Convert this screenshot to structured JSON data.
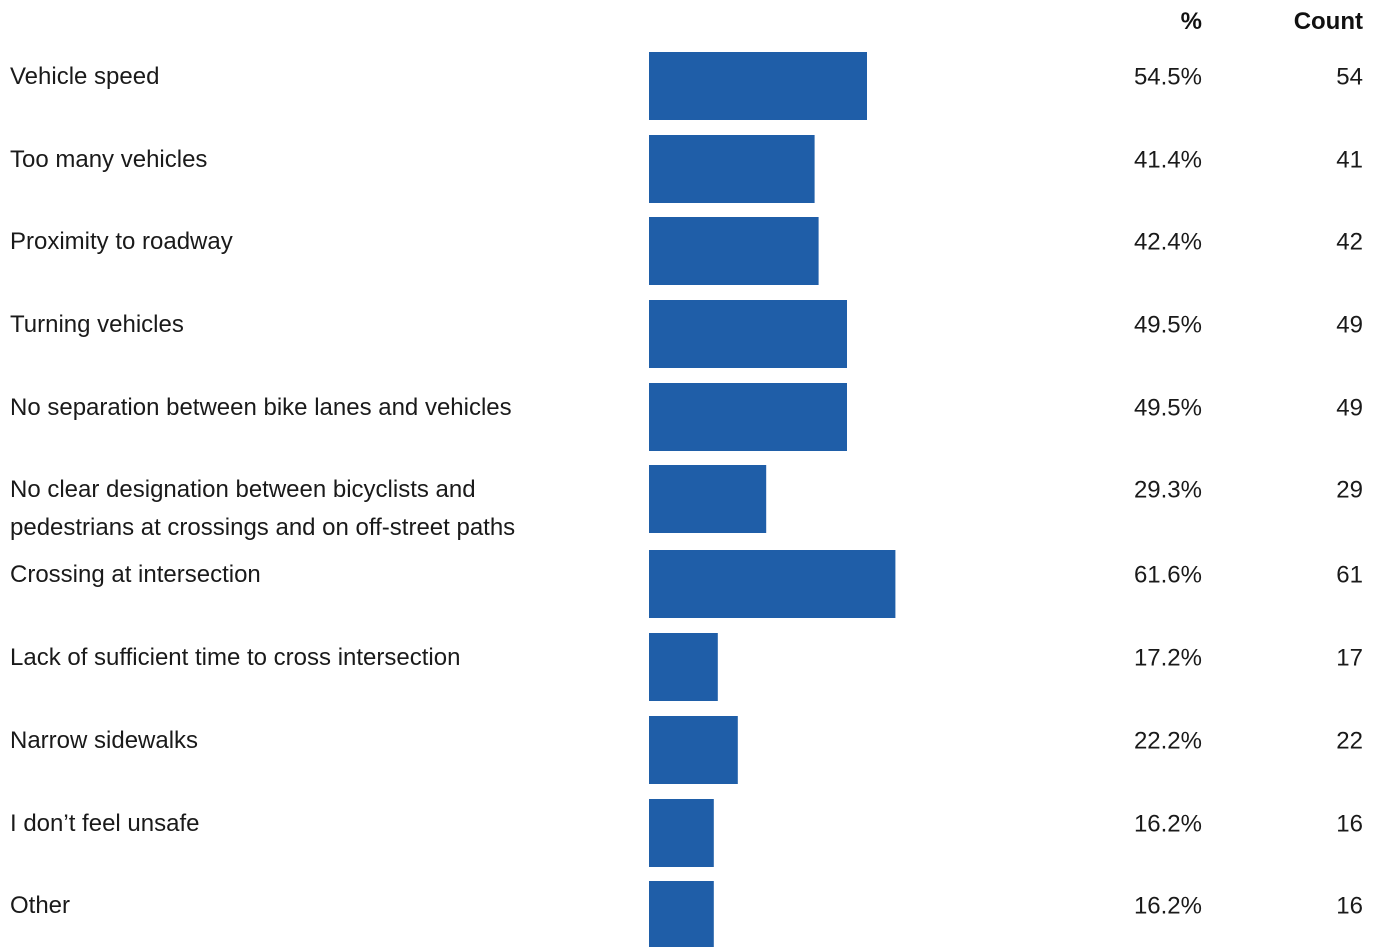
{
  "headers": {
    "percent": "%",
    "count": "Count"
  },
  "colors": {
    "bar": "#1f5ea8"
  },
  "chart_data": {
    "type": "bar",
    "orientation": "horizontal",
    "categories": [
      [
        "Vehicle speed"
      ],
      [
        "Too many vehicles"
      ],
      [
        "Proximity to roadway"
      ],
      [
        "Turning vehicles"
      ],
      [
        "No separation between bike lanes and vehicles"
      ],
      [
        "No clear designation between bicyclists and",
        "pedestrians at crossings and on off-street paths"
      ],
      [
        "Crossing at intersection"
      ],
      [
        "Lack of sufficient time to cross intersection"
      ],
      [
        "Narrow sidewalks"
      ],
      [
        "I don’t feel unsafe"
      ],
      [
        "Other"
      ]
    ],
    "series": [
      {
        "values": [
          54.5,
          41.4,
          42.4,
          49.5,
          49.5,
          29.3,
          61.6,
          17.2,
          22.2,
          16.2,
          16.2
        ]
      }
    ],
    "percent_labels": [
      "54.5%",
      "41.4%",
      "42.4%",
      "49.5%",
      "49.5%",
      "29.3%",
      "61.6%",
      "17.2%",
      "22.2%",
      "16.2%",
      "16.2%"
    ],
    "counts": [
      "54",
      "41",
      "42",
      "49",
      "49",
      "29",
      "61",
      "17",
      "22",
      "16",
      "16"
    ],
    "xlim": [
      0,
      100
    ],
    "grid": false,
    "legend": "none"
  }
}
